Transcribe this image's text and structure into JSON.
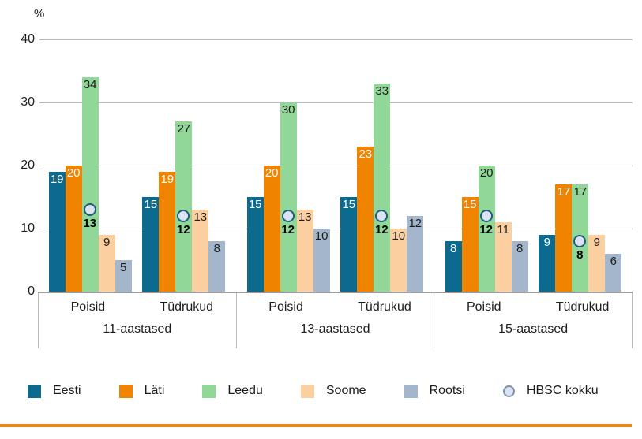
{
  "chart_data": {
    "type": "bar",
    "y_unit": "%",
    "ylim": [
      0,
      40
    ],
    "y_ticks": [
      0,
      10,
      20,
      30,
      40
    ],
    "grid": true,
    "legend_position": "bottom",
    "groups": [
      {
        "label": "11-aastased",
        "categories": [
          "Poisid",
          "Tüdrukud"
        ]
      },
      {
        "label": "13-aastased",
        "categories": [
          "Poisid",
          "Tüdrukud"
        ]
      },
      {
        "label": "15-aastased",
        "categories": [
          "Poisid",
          "Tüdrukud"
        ]
      }
    ],
    "series": [
      {
        "name": "Eesti",
        "color": "#0b6a8d",
        "label_color": "#ffffff",
        "values": [
          19,
          15,
          15,
          15,
          8,
          9
        ]
      },
      {
        "name": "Läti",
        "color": "#f08300",
        "label_color": "#ffffff",
        "values": [
          20,
          19,
          20,
          23,
          15,
          17
        ]
      },
      {
        "name": "Leedu",
        "color": "#90d798",
        "label_color": "#1d1d1b",
        "values": [
          34,
          27,
          30,
          33,
          20,
          17
        ]
      },
      {
        "name": "Soome",
        "color": "#fbcfa0",
        "label_color": "#1d1d1b",
        "values": [
          9,
          13,
          13,
          10,
          11,
          9
        ]
      },
      {
        "name": "Rootsi",
        "color": "#a3b6cb",
        "label_color": "#1d1d1b",
        "values": [
          5,
          8,
          10,
          12,
          8,
          6
        ]
      }
    ],
    "marker_series": {
      "name": "HBSC kokku",
      "values": [
        13,
        12,
        12,
        12,
        12,
        8
      ],
      "fill": "#dbe2f2",
      "stroke": "#1d5f79",
      "label_color": "#000000"
    }
  },
  "legend": {
    "items": [
      {
        "label": "Eesti",
        "shape": "square",
        "color": "#0b6a8d"
      },
      {
        "label": "Läti",
        "shape": "square",
        "color": "#f08300"
      },
      {
        "label": "Leedu",
        "shape": "square",
        "color": "#90d798"
      },
      {
        "label": "Soome",
        "shape": "square",
        "color": "#fbcfa0"
      },
      {
        "label": "Rootsi",
        "shape": "square",
        "color": "#a3b6cb"
      },
      {
        "label": "HBSC kokku",
        "shape": "circle",
        "color": "#dbe2f2",
        "stroke": "#7c93a8"
      }
    ]
  },
  "accent_rule_color": "#e8831e"
}
